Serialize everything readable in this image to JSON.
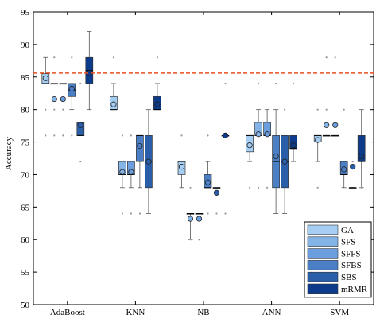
{
  "chart_data": {
    "type": "box",
    "title": "",
    "xlabel": "",
    "ylabel": "Accuracy",
    "ylim": [
      50,
      95
    ],
    "yticks": [
      50,
      55,
      60,
      65,
      70,
      75,
      80,
      85,
      90,
      95
    ],
    "grid": false,
    "legend_position": "bottom-right",
    "categories": [
      "AdaBoost",
      "KNN",
      "NB",
      "ANN",
      "SVM"
    ],
    "reference_line": {
      "value": 85.6,
      "color": "#e8501e",
      "style": "dashed"
    },
    "series": [
      {
        "name": "GA",
        "color": "#a6cdf2",
        "boxes": [
          {
            "whislo": 84,
            "q1": 84,
            "med": 84,
            "q3": 85.5,
            "whishi": 88,
            "mean": 84.8,
            "fliers": [
              80,
              76
            ]
          },
          {
            "whislo": 80,
            "q1": 80,
            "med": 80,
            "q3": 82,
            "whishi": 84,
            "mean": 80.8,
            "fliers": [
              88
            ]
          },
          {
            "whislo": 68,
            "q1": 70,
            "med": 72,
            "q3": 72,
            "whishi": 72,
            "mean": 71.2,
            "fliers": [
              76
            ]
          },
          {
            "whislo": 72,
            "q1": 73.5,
            "med": 76,
            "q3": 76,
            "whishi": 76,
            "mean": 74.5,
            "fliers": [
              68
            ]
          },
          {
            "whislo": 72,
            "q1": 75,
            "med": 76,
            "q3": 76,
            "whishi": 76,
            "mean": 75.3,
            "fliers": [
              68,
              80
            ]
          }
        ]
      },
      {
        "name": "SFS",
        "color": "#84b4e6",
        "boxes": [
          {
            "whislo": 84,
            "q1": 84,
            "med": 84,
            "q3": 84,
            "whishi": 84,
            "mean": 81.6,
            "fliers": [
              80,
              76,
              88
            ]
          },
          {
            "whislo": 68,
            "q1": 70,
            "med": 70,
            "q3": 72,
            "whishi": 72,
            "mean": 70.4,
            "fliers": [
              64,
              76
            ]
          },
          {
            "whislo": 60,
            "q1": 64,
            "med": 64,
            "q3": 64,
            "whishi": 64,
            "mean": 63.2,
            "fliers": [
              60,
              68
            ]
          },
          {
            "whislo": 76,
            "q1": 76,
            "med": 76,
            "q3": 78,
            "whishi": 80,
            "mean": 76.2,
            "fliers": [
              68,
              84
            ]
          },
          {
            "whislo": 76,
            "q1": 76,
            "med": 76,
            "q3": 76,
            "whishi": 76,
            "mean": 77.6,
            "fliers": [
              88,
              80
            ]
          }
        ]
      },
      {
        "name": "SFFS",
        "color": "#6b9ede",
        "boxes": [
          {
            "whislo": 84,
            "q1": 84,
            "med": 84,
            "q3": 84,
            "whishi": 84,
            "mean": 81.6,
            "fliers": [
              80,
              76
            ]
          },
          {
            "whislo": 68,
            "q1": 70,
            "med": 70,
            "q3": 72,
            "whishi": 72,
            "mean": 70.4,
            "fliers": [
              64,
              76
            ]
          },
          {
            "whislo": 64,
            "q1": 64,
            "med": 64,
            "q3": 64,
            "whishi": 64,
            "mean": 63.2,
            "fliers": [
              60
            ]
          },
          {
            "whislo": 76,
            "q1": 76,
            "med": 76,
            "q3": 78,
            "whishi": 80,
            "mean": 76.2,
            "fliers": [
              68
            ]
          },
          {
            "whislo": 76,
            "q1": 76,
            "med": 76,
            "q3": 76,
            "whishi": 76,
            "mean": 77.6,
            "fliers": [
              88
            ]
          }
        ]
      },
      {
        "name": "SFBS",
        "color": "#4a7fc6",
        "boxes": [
          {
            "whislo": 80,
            "q1": 82,
            "med": 83,
            "q3": 84,
            "whishi": 84,
            "mean": 83.2,
            "fliers": [
              88,
              76
            ]
          },
          {
            "whislo": 68,
            "q1": 72,
            "med": 76,
            "q3": 76,
            "whishi": 76,
            "mean": 74.4,
            "fliers": [
              64
            ]
          },
          {
            "whislo": 68,
            "q1": 68,
            "med": 68,
            "q3": 70,
            "whishi": 72,
            "mean": 68.8,
            "fliers": [
              64,
              76
            ]
          },
          {
            "whislo": 64,
            "q1": 68,
            "med": 72,
            "q3": 76,
            "whishi": 80,
            "mean": 72.8,
            "fliers": [
              84
            ]
          },
          {
            "whislo": 68,
            "q1": 70,
            "med": 70,
            "q3": 72,
            "whishi": 72,
            "mean": 70.8,
            "fliers": [
              80
            ]
          }
        ]
      },
      {
        "name": "SBS",
        "color": "#2a5ea8",
        "boxes": [
          {
            "whislo": 76,
            "q1": 76,
            "med": 76,
            "q3": 78,
            "whishi": 78,
            "mean": 77.6,
            "fliers": [
              72,
              84
            ]
          },
          {
            "whislo": 64,
            "q1": 68,
            "med": 72,
            "q3": 76,
            "whishi": 80,
            "mean": 72,
            "fliers": []
          },
          {
            "whislo": 68,
            "q1": 68,
            "med": 68,
            "q3": 68,
            "whishi": 68,
            "mean": 67.2,
            "fliers": [
              64
            ]
          },
          {
            "whislo": 64,
            "q1": 68,
            "med": 72,
            "q3": 76,
            "whishi": 76,
            "mean": 72,
            "fliers": [
              80
            ]
          },
          {
            "whislo": 68,
            "q1": 68,
            "med": 68,
            "q3": 68,
            "whishi": 68,
            "mean": 71.2,
            "fliers": [
              72
            ]
          }
        ]
      },
      {
        "name": "mRMR",
        "color": "#0c3b8c",
        "boxes": [
          {
            "whislo": 80,
            "q1": 84,
            "med": 86,
            "q3": 88,
            "whishi": 92,
            "mean": 85.6,
            "fliers": []
          },
          {
            "whislo": 80,
            "q1": 80,
            "med": 80,
            "q3": 82,
            "whishi": 84,
            "mean": 80.8,
            "fliers": [
              88
            ]
          },
          {
            "whislo": 76,
            "q1": 76,
            "med": 76,
            "q3": 76,
            "whishi": 76,
            "mean": 76,
            "fliers": [
              84,
              64
            ]
          },
          {
            "whislo": 72,
            "q1": 74,
            "med": 74,
            "q3": 76,
            "whishi": 76,
            "mean": 74.5,
            "fliers": [
              84
            ]
          },
          {
            "whislo": 68,
            "q1": 72,
            "med": 72,
            "q3": 76,
            "whishi": 80,
            "mean": 72.8,
            "fliers": [
              68
            ]
          }
        ]
      }
    ]
  }
}
